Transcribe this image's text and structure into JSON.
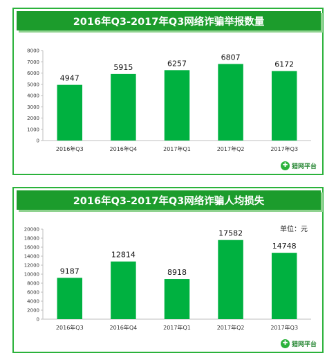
{
  "chart_data": [
    {
      "type": "bar",
      "title": "2016年Q3-2017年Q3网络诈骗举报数量",
      "categories": [
        "2016年Q3",
        "2016年Q4",
        "2017年Q1",
        "2017年Q2",
        "2017年Q3"
      ],
      "values": [
        4947,
        5915,
        6257,
        6807,
        6172
      ],
      "ylim": [
        0,
        8000
      ],
      "yticks": [
        "0",
        "1000",
        "2000",
        "3000",
        "4000",
        "5000",
        "6000",
        "7000",
        "8000"
      ],
      "xlabel": "",
      "ylabel": "",
      "color": "#00b140",
      "grid": false
    },
    {
      "type": "bar",
      "title": "2016年Q3-2017年Q3网络诈骗人均损失",
      "unit_label": "单位：元",
      "categories": [
        "2016年Q3",
        "2016年Q4",
        "2017年Q1",
        "2017年Q2",
        "2017年Q3"
      ],
      "values": [
        9187,
        12814,
        8918,
        17582,
        14748
      ],
      "ylim": [
        0,
        20000
      ],
      "yticks": [
        "0",
        "2000",
        "4000",
        "6000",
        "8000",
        "10000",
        "12000",
        "14000",
        "16000",
        "18000",
        "20000"
      ],
      "xlabel": "",
      "ylabel": "",
      "color": "#00b140",
      "grid": false
    }
  ],
  "logo": {
    "text": "猎网平台",
    "icon": "shield-leaf-icon"
  }
}
